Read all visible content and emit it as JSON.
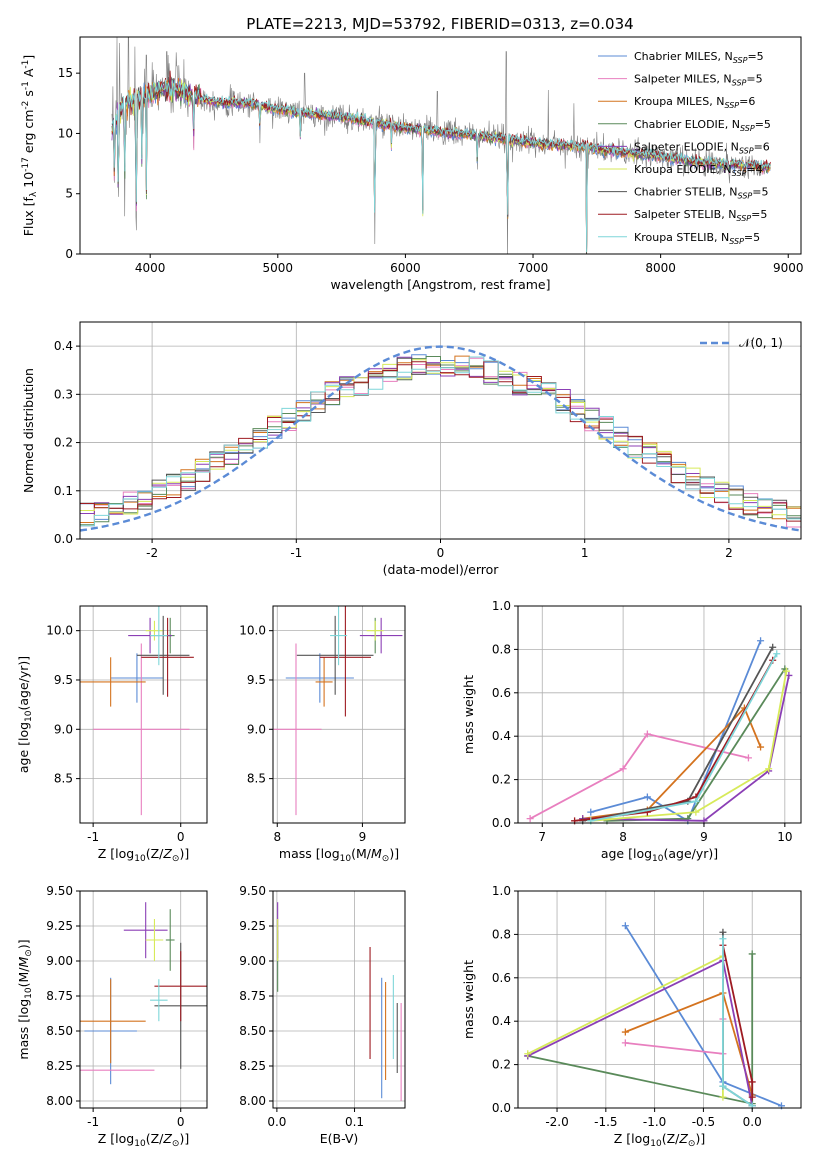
{
  "figure": {
    "title": "PLATE=2213, MJD=53792, FIBERID=0313, z=0.034"
  },
  "colors": {
    "chabrier_miles": "#5b8bd6",
    "salpeter_miles": "#e87fbf",
    "kroupa_miles": "#d4731f",
    "chabrier_elodie": "#5a8a5a",
    "salpeter_elodie": "#8b3fb5",
    "kroupa_elodie": "#d7ea5a",
    "chabrier_stelib": "#555555",
    "salpeter_stelib": "#9e1b22",
    "kroupa_stelib": "#7fd6d9",
    "data": "#7f7f7f",
    "gaussian": "#5b8bd6"
  },
  "chart_data": [
    {
      "id": "spectrum",
      "type": "line",
      "xlabel": "wavelength [Angstrom, rest frame]",
      "ylabel": "Flux [f_λ 10^-17 erg cm^-2 s^-1 A^-1]",
      "xlim": [
        3450,
        9100
      ],
      "ylim": [
        0,
        18
      ],
      "xticks": [
        4000,
        5000,
        6000,
        7000,
        8000,
        9000
      ],
      "yticks": [
        0,
        5,
        10,
        15
      ],
      "grid": false,
      "legend_position": "top-right",
      "legend": [
        {
          "key": "chabrier_miles",
          "label": "Chabrier MILES, N",
          "sub": "SSP",
          "suffix": "=5"
        },
        {
          "key": "salpeter_miles",
          "label": "Salpeter MILES, N",
          "sub": "SSP",
          "suffix": "=5"
        },
        {
          "key": "kroupa_miles",
          "label": "Kroupa MILES, N",
          "sub": "SSP",
          "suffix": "=6"
        },
        {
          "key": "chabrier_elodie",
          "label": "Chabrier ELODIE, N",
          "sub": "SSP",
          "suffix": "=5"
        },
        {
          "key": "salpeter_elodie",
          "label": "Salpeter ELODIE, N",
          "sub": "SSP",
          "suffix": "=6"
        },
        {
          "key": "kroupa_elodie",
          "label": "Kroupa ELODIE, N",
          "sub": "SSP",
          "suffix": "=4"
        },
        {
          "key": "chabrier_stelib",
          "label": "Chabrier STELIB, N",
          "sub": "SSP",
          "suffix": "=5"
        },
        {
          "key": "salpeter_stelib",
          "label": "Salpeter STELIB, N",
          "sub": "SSP",
          "suffix": "=5"
        },
        {
          "key": "kroupa_stelib",
          "label": "Kroupa STELIB, N",
          "sub": "SSP",
          "suffix": "=5"
        }
      ],
      "continuum": [
        [
          3700,
          10.3
        ],
        [
          3800,
          12.5
        ],
        [
          3900,
          12.8
        ],
        [
          4000,
          13.3
        ],
        [
          4100,
          13.6
        ],
        [
          4200,
          13.7
        ],
        [
          4300,
          13.3
        ],
        [
          4500,
          12.6
        ],
        [
          4800,
          12.5
        ],
        [
          5000,
          12.0
        ],
        [
          5300,
          11.6
        ],
        [
          5600,
          11.2
        ],
        [
          5900,
          10.6
        ],
        [
          6200,
          10.2
        ],
        [
          6500,
          9.9
        ],
        [
          6800,
          9.5
        ],
        [
          7100,
          9.1
        ],
        [
          7400,
          8.9
        ],
        [
          7700,
          8.4
        ],
        [
          8000,
          8.1
        ],
        [
          8300,
          7.6
        ],
        [
          8600,
          7.4
        ],
        [
          8850,
          7.2
        ]
      ],
      "features": [
        [
          3720,
          5.3
        ],
        [
          3750,
          3.3
        ],
        [
          3800,
          4.5
        ],
        [
          3890,
          0.0
        ],
        [
          3935,
          6.9
        ],
        [
          3970,
          5.0
        ],
        [
          4340,
          8.5
        ],
        [
          4860,
          10.0
        ],
        [
          5175,
          9.5
        ],
        [
          5760,
          0.0
        ],
        [
          5890,
          9.0
        ],
        [
          6135,
          2.0
        ],
        [
          6563,
          7.5
        ],
        [
          6800,
          0.0
        ],
        [
          7420,
          0.0
        ],
        [
          8500,
          7.0
        ],
        [
          8540,
          6.6
        ],
        [
          8660,
          6.8
        ]
      ],
      "spikes": [
        [
          3740,
          18
        ],
        [
          3760,
          17.5
        ],
        [
          3830,
          18
        ],
        [
          3880,
          17.2
        ],
        [
          3970,
          16.5
        ],
        [
          4130,
          16.8
        ],
        [
          4210,
          15.6
        ],
        [
          5210,
          15.0
        ],
        [
          5460,
          12.2
        ],
        [
          6250,
          13.5
        ],
        [
          6790,
          16.8
        ],
        [
          7120,
          13.6
        ],
        [
          7320,
          12.5
        ]
      ]
    },
    {
      "id": "residuals",
      "type": "histogram",
      "xlabel": "(data-model)/error",
      "ylabel": "Normed distribution",
      "xlim": [
        -2.5,
        2.5
      ],
      "ylim": [
        0,
        0.45
      ],
      "xticks": [
        -2,
        -1,
        0,
        1,
        2
      ],
      "yticks": [
        0.0,
        0.1,
        0.2,
        0.3,
        0.4
      ],
      "grid": true,
      "legend_position": "top-right",
      "gaussian_label": "𝒩(0, 1)",
      "bin_width": 0.1,
      "bins_start": -2.5
    },
    {
      "id": "age_vs_Z",
      "type": "errorbar",
      "xlabel": "Z [log10(Z/Z⊙)]",
      "ylabel": "age [log10(age/yr)]",
      "xlim": [
        -1.15,
        0.3
      ],
      "ylim": [
        8.05,
        10.25
      ],
      "xticks": [
        -1,
        0
      ],
      "yticks": [
        8.5,
        9.0,
        9.5,
        10.0
      ],
      "grid": true,
      "points": [
        {
          "key": "chabrier_miles",
          "x": -0.5,
          "xerr": 0.3,
          "y": 9.52,
          "yerr": 0.25
        },
        {
          "key": "salpeter_miles",
          "x": -0.45,
          "xerr": 0.55,
          "y": 9.0,
          "yerr": 0.87
        },
        {
          "key": "kroupa_miles",
          "x": -0.8,
          "xerr": 0.4,
          "y": 9.48,
          "yerr": 0.25
        },
        {
          "key": "chabrier_elodie",
          "x": -0.12,
          "xerr": 0.05,
          "y": 9.95,
          "yerr": 0.18
        },
        {
          "key": "salpeter_elodie",
          "x": -0.35,
          "xerr": 0.25,
          "y": 9.95,
          "yerr": 0.18
        },
        {
          "key": "kroupa_elodie",
          "x": -0.3,
          "xerr": 0.1,
          "y": 10.0,
          "yerr": 0.1
        },
        {
          "key": "chabrier_stelib",
          "x": -0.2,
          "xerr": 0.3,
          "y": 9.75,
          "yerr": 0.4
        },
        {
          "key": "salpeter_stelib",
          "x": -0.15,
          "xerr": 0.3,
          "y": 9.73,
          "yerr": 0.4
        },
        {
          "key": "kroupa_stelib",
          "x": -0.25,
          "xerr": 0.1,
          "y": 9.95,
          "yerr": 0.3
        }
      ]
    },
    {
      "id": "age_vs_mass",
      "type": "errorbar",
      "xlabel": "mass [log10(M/M⊙)]",
      "ylabel": "",
      "xlim": [
        7.95,
        9.5
      ],
      "ylim": [
        8.05,
        10.25
      ],
      "xticks": [
        8,
        9
      ],
      "yticks": [
        8.5,
        9.0,
        9.5,
        10.0
      ],
      "grid": true,
      "points": [
        {
          "key": "chabrier_miles",
          "x": 8.5,
          "xerr": 0.4,
          "y": 9.52,
          "yerr": 0.25
        },
        {
          "key": "salpeter_miles",
          "x": 8.22,
          "xerr": 0.3,
          "y": 9.0,
          "yerr": 0.87
        },
        {
          "key": "kroupa_miles",
          "x": 8.55,
          "xerr": 0.1,
          "y": 9.48,
          "yerr": 0.25
        },
        {
          "key": "chabrier_elodie",
          "x": 9.15,
          "xerr": 0.05,
          "y": 9.95,
          "yerr": 0.18
        },
        {
          "key": "salpeter_elodie",
          "x": 9.22,
          "xerr": 0.25,
          "y": 9.95,
          "yerr": 0.18
        },
        {
          "key": "kroupa_elodie",
          "x": 9.15,
          "xerr": 0.1,
          "y": 10.0,
          "yerr": 0.1
        },
        {
          "key": "chabrier_stelib",
          "x": 8.68,
          "xerr": 0.45,
          "y": 9.75,
          "yerr": 0.4
        },
        {
          "key": "salpeter_stelib",
          "x": 8.8,
          "xerr": 0.3,
          "y": 9.73,
          "yerr": 0.6
        },
        {
          "key": "kroupa_stelib",
          "x": 8.72,
          "xerr": 0.1,
          "y": 9.95,
          "yerr": 0.3
        }
      ]
    },
    {
      "id": "massweight_vs_age",
      "type": "line",
      "xlabel": "age [log10(age/yr)]",
      "ylabel": "mass weight",
      "xlim": [
        6.7,
        10.2
      ],
      "ylim": [
        0.0,
        1.0
      ],
      "xticks": [
        7,
        8,
        9,
        10
      ],
      "yticks": [
        0.0,
        0.2,
        0.4,
        0.6,
        0.8,
        1.0
      ],
      "grid": true,
      "series": [
        {
          "key": "chabrier_miles",
          "x": [
            7.6,
            8.3,
            8.8,
            9.7
          ],
          "y": [
            0.05,
            0.12,
            0.01,
            0.84
          ]
        },
        {
          "key": "salpeter_miles",
          "x": [
            6.85,
            8.0,
            8.3,
            9.55
          ],
          "y": [
            0.02,
            0.25,
            0.41,
            0.3
          ]
        },
        {
          "key": "kroupa_miles",
          "x": [
            7.5,
            8.3,
            9.5,
            9.7
          ],
          "y": [
            0.02,
            0.06,
            0.53,
            0.35
          ]
        },
        {
          "key": "chabrier_elodie",
          "x": [
            7.8,
            8.8,
            10.0
          ],
          "y": [
            0.01,
            0.02,
            0.71
          ]
        },
        {
          "key": "salpeter_elodie",
          "x": [
            7.5,
            9.0,
            9.8,
            10.05
          ],
          "y": [
            0.02,
            0.01,
            0.24,
            0.68
          ]
        },
        {
          "key": "kroupa_elodie",
          "x": [
            7.6,
            8.9,
            9.8,
            10.02
          ],
          "y": [
            0.01,
            0.05,
            0.25,
            0.7
          ]
        },
        {
          "key": "chabrier_stelib",
          "x": [
            7.5,
            8.8,
            9.85
          ],
          "y": [
            0.01,
            0.1,
            0.81
          ]
        },
        {
          "key": "salpeter_stelib",
          "x": [
            7.4,
            8.3,
            8.9,
            9.85
          ],
          "y": [
            0.01,
            0.05,
            0.12,
            0.75
          ]
        },
        {
          "key": "kroupa_stelib",
          "x": [
            7.6,
            8.9,
            9.9
          ],
          "y": [
            0.01,
            0.1,
            0.78
          ]
        }
      ]
    },
    {
      "id": "mass_vs_Z",
      "type": "errorbar",
      "xlabel": "Z [log10(Z/Z⊙)]",
      "ylabel": "mass [log10(M/M⊙)]",
      "xlim": [
        -1.15,
        0.3
      ],
      "ylim": [
        7.95,
        9.5
      ],
      "xticks": [
        -1,
        0
      ],
      "yticks": [
        8.0,
        8.25,
        8.5,
        8.75,
        9.0,
        9.25,
        9.5
      ],
      "grid": true,
      "points": [
        {
          "key": "chabrier_miles",
          "x": -0.8,
          "xerr": 0.3,
          "y": 8.5,
          "yerr": 0.38
        },
        {
          "key": "salpeter_miles",
          "x": -0.85,
          "xerr": 0.55,
          "y": 8.22,
          "yerr": 0.0
        },
        {
          "key": "kroupa_miles",
          "x": -0.8,
          "xerr": 0.4,
          "y": 8.57,
          "yerr": 0.3
        },
        {
          "key": "chabrier_elodie",
          "x": -0.12,
          "xerr": 0.05,
          "y": 9.15,
          "yerr": 0.22
        },
        {
          "key": "salpeter_elodie",
          "x": -0.4,
          "xerr": 0.25,
          "y": 9.22,
          "yerr": 0.2
        },
        {
          "key": "kroupa_elodie",
          "x": -0.3,
          "xerr": 0.1,
          "y": 9.15,
          "yerr": 0.15
        },
        {
          "key": "chabrier_stelib",
          "x": 0.0,
          "xerr": 0.3,
          "y": 8.68,
          "yerr": 0.45
        },
        {
          "key": "salpeter_stelib",
          "x": 0.0,
          "xerr": 0.3,
          "y": 8.82,
          "yerr": 0.25
        },
        {
          "key": "kroupa_stelib",
          "x": -0.25,
          "xerr": 0.1,
          "y": 8.72,
          "yerr": 0.15
        }
      ]
    },
    {
      "id": "mass_vs_EBV",
      "type": "errorbar",
      "xlabel": "E(B-V)",
      "ylabel": "",
      "xlim": [
        -0.005,
        0.165
      ],
      "ylim": [
        7.95,
        9.5
      ],
      "xticks": [
        0.0,
        0.1
      ],
      "yticks": [
        8.0,
        8.25,
        8.5,
        8.75,
        9.0,
        9.25,
        9.5
      ],
      "grid": true,
      "points": [
        {
          "key": "chabrier_miles",
          "x": 0.135,
          "xerr": 0,
          "y": 8.45,
          "yerr": 0.43
        },
        {
          "key": "salpeter_miles",
          "x": 0.16,
          "xerr": 0,
          "y": 8.35,
          "yerr": 0.35
        },
        {
          "key": "kroupa_miles",
          "x": 0.14,
          "xerr": 0,
          "y": 8.5,
          "yerr": 0.35
        },
        {
          "key": "chabrier_elodie",
          "x": 0.001,
          "xerr": 0,
          "y": 9.0,
          "yerr": 0.22
        },
        {
          "key": "salpeter_elodie",
          "x": 0.001,
          "xerr": 0,
          "y": 9.22,
          "yerr": 0.2
        },
        {
          "key": "kroupa_elodie",
          "x": 0.001,
          "xerr": 0,
          "y": 9.15,
          "yerr": 0.15
        },
        {
          "key": "chabrier_stelib",
          "x": 0.155,
          "xerr": 0,
          "y": 8.45,
          "yerr": 0.25
        },
        {
          "key": "salpeter_stelib",
          "x": 0.12,
          "xerr": 0,
          "y": 8.7,
          "yerr": 0.4
        },
        {
          "key": "kroupa_stelib",
          "x": 0.15,
          "xerr": 0,
          "y": 8.6,
          "yerr": 0.3
        }
      ]
    },
    {
      "id": "massweight_vs_Z",
      "type": "line",
      "xlabel": "Z [log10(Z/Z⊙)]",
      "ylabel": "mass weight",
      "xlim": [
        -2.4,
        0.5
      ],
      "ylim": [
        0.0,
        1.0
      ],
      "xticks": [
        -2.0,
        -1.5,
        -1.0,
        -0.5,
        0.0
      ],
      "yticks": [
        0.0,
        0.2,
        0.4,
        0.6,
        0.8,
        1.0
      ],
      "grid": true,
      "series": [
        {
          "key": "chabrier_miles",
          "x": [
            -1.3,
            -0.3,
            0.3
          ],
          "y": [
            0.84,
            0.12,
            0.01
          ]
        },
        {
          "key": "salpeter_miles",
          "x": [
            -1.3,
            -0.3,
            -0.3
          ],
          "y": [
            0.3,
            0.25,
            0.41
          ]
        },
        {
          "key": "kroupa_miles",
          "x": [
            -1.3,
            -0.3,
            0.0
          ],
          "y": [
            0.35,
            0.53,
            0.06
          ]
        },
        {
          "key": "chabrier_elodie",
          "x": [
            -2.3,
            0.0,
            0.0
          ],
          "y": [
            0.24,
            0.02,
            0.71
          ]
        },
        {
          "key": "salpeter_elodie",
          "x": [
            -2.3,
            -0.3,
            0.0
          ],
          "y": [
            0.24,
            0.68,
            0.01
          ]
        },
        {
          "key": "kroupa_elodie",
          "x": [
            -2.3,
            -0.3,
            -0.3
          ],
          "y": [
            0.25,
            0.7,
            0.05
          ]
        },
        {
          "key": "chabrier_stelib",
          "x": [
            -0.3,
            -0.3,
            0.0
          ],
          "y": [
            0.81,
            0.1,
            0.01
          ]
        },
        {
          "key": "salpeter_stelib",
          "x": [
            -0.3,
            0.0,
            0.0
          ],
          "y": [
            0.75,
            0.12,
            0.05
          ]
        },
        {
          "key": "kroupa_stelib",
          "x": [
            -0.3,
            -0.3,
            0.0
          ],
          "y": [
            0.78,
            0.1,
            0.01
          ]
        }
      ]
    }
  ]
}
